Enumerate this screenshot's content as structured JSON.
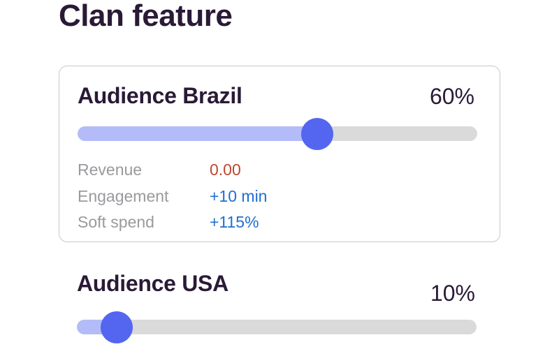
{
  "page": {
    "title": "Clan feature"
  },
  "audiences": [
    {
      "name": "Audience Brazil",
      "percent_label": "60%",
      "percent": 60,
      "metrics": [
        {
          "label": "Revenue",
          "value": "0.00",
          "tone": "warn"
        },
        {
          "label": "Engagement",
          "value": "+10 min",
          "tone": "info"
        },
        {
          "label": "Soft spend",
          "value": "+115%",
          "tone": "info"
        }
      ]
    },
    {
      "name": "Audience USA",
      "percent_label": "10%",
      "percent": 10
    }
  ],
  "colors": {
    "heading": "#2a1a36",
    "track": "#dadada",
    "fill": "#b3bcf9",
    "thumb": "#5466f0",
    "negative_value": "#c0472c",
    "positive_value": "#1f6fd1",
    "muted_label": "#9a9a9e"
  }
}
